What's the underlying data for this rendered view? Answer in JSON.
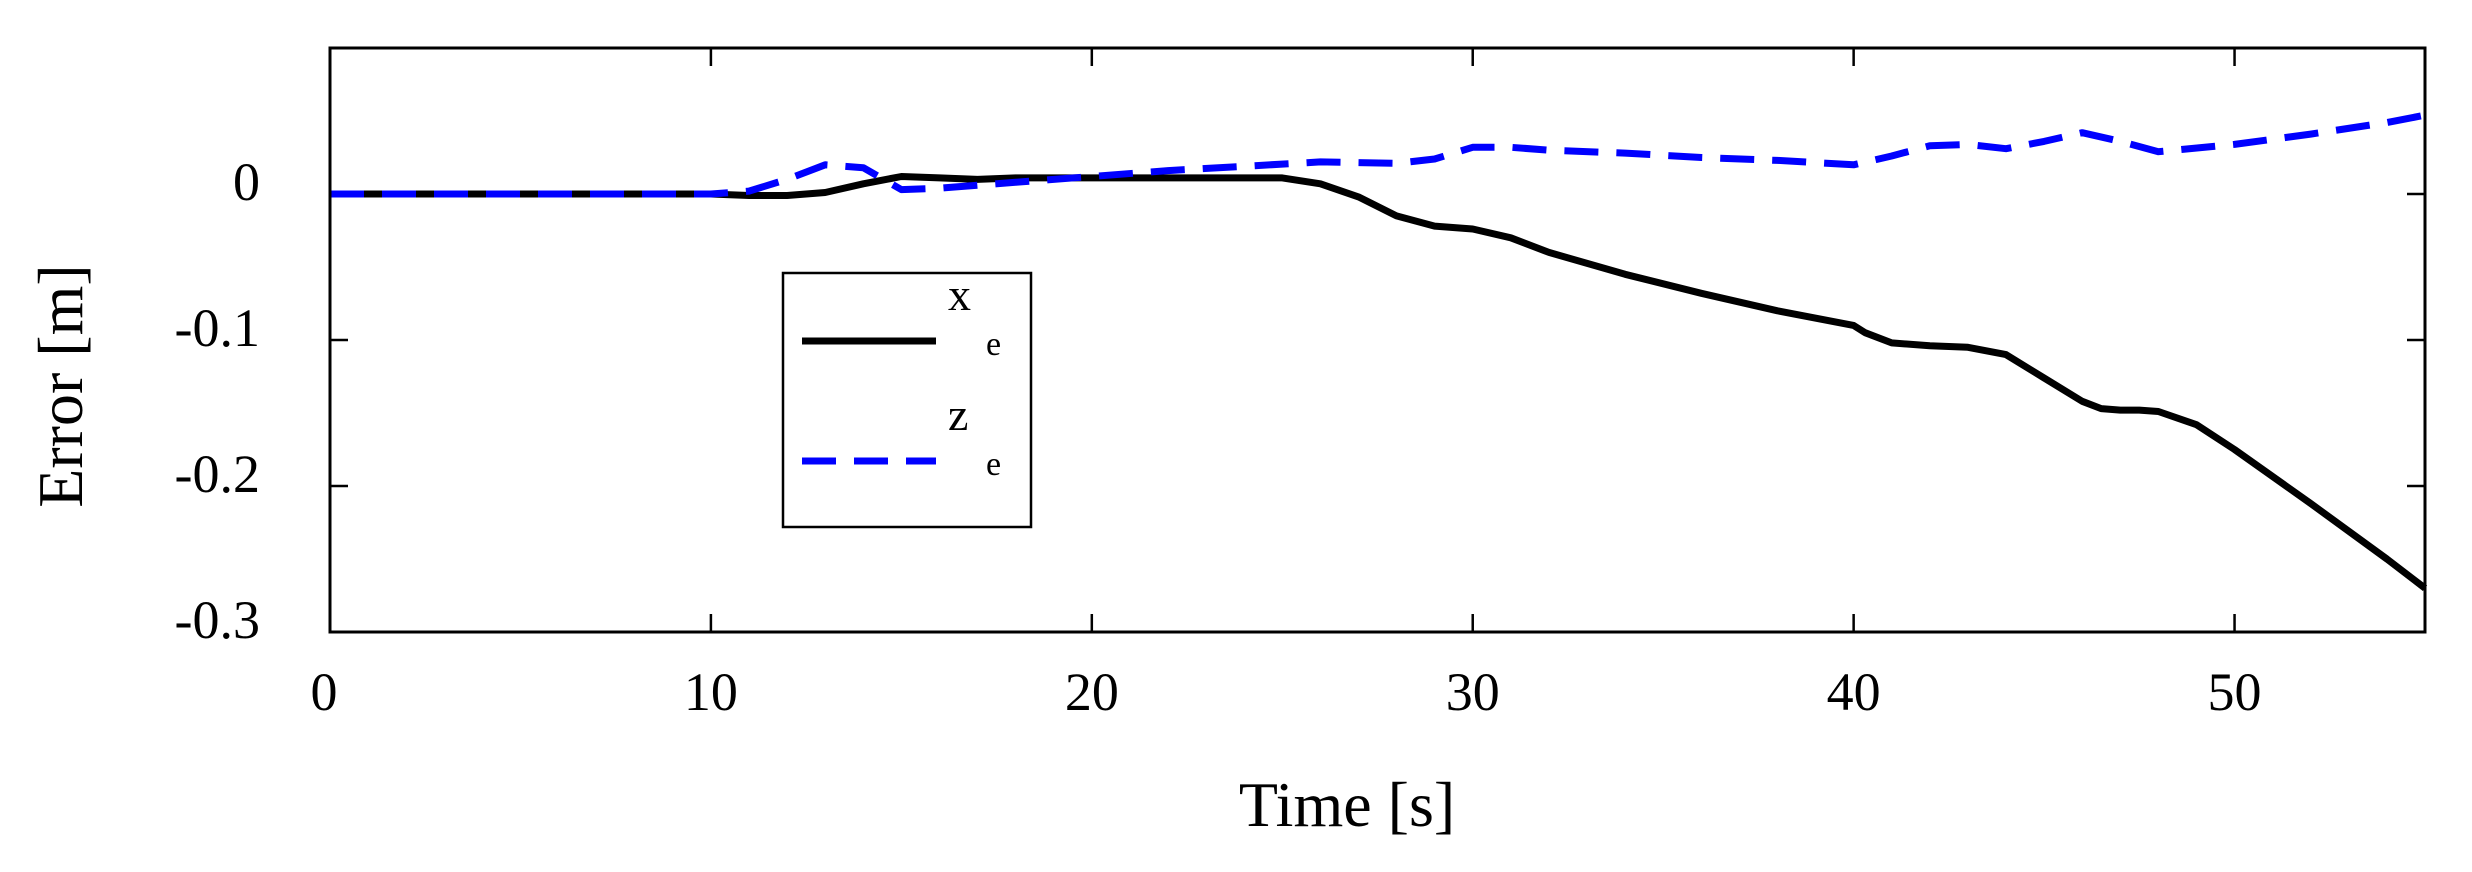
{
  "chart_data": {
    "type": "line",
    "xlabel": "Time [s]",
    "ylabel": "Error [m]",
    "xlim": [
      0,
      55
    ],
    "ylim": [
      -0.3,
      0.1
    ],
    "xticks": [
      0,
      10,
      20,
      30,
      40,
      50
    ],
    "xtick_labels": [
      "0",
      "10",
      "20",
      "30",
      "40",
      "50"
    ],
    "yticks": [
      0,
      -0.1,
      -0.2,
      -0.3
    ],
    "ytick_labels": [
      "0",
      "-0.1",
      "-0.2",
      "-0.3"
    ],
    "grid": false,
    "legend_position": "center-left",
    "series": [
      {
        "name": "x_e",
        "legend_main": "x",
        "legend_sub": "e",
        "color": "#000000",
        "style": "solid",
        "x": [
          0,
          10,
          11,
          12,
          13,
          14,
          15,
          16,
          17,
          18,
          20,
          22,
          24,
          25,
          26,
          27,
          28,
          29,
          30,
          31,
          32,
          34,
          36,
          38,
          40,
          40.3,
          41,
          42,
          43,
          44,
          45,
          46,
          46.5,
          47,
          47.5,
          48,
          49,
          50,
          52,
          54,
          55
        ],
        "y": [
          0,
          0,
          -0.001,
          -0.001,
          0.001,
          0.007,
          0.012,
          0.011,
          0.01,
          0.011,
          0.011,
          0.011,
          0.011,
          0.011,
          0.007,
          -0.002,
          -0.015,
          -0.022,
          -0.024,
          -0.03,
          -0.04,
          -0.055,
          -0.068,
          -0.08,
          -0.09,
          -0.095,
          -0.102,
          -0.104,
          -0.105,
          -0.11,
          -0.126,
          -0.142,
          -0.147,
          -0.148,
          -0.148,
          -0.149,
          -0.158,
          -0.175,
          -0.212,
          -0.25,
          -0.27
        ]
      },
      {
        "name": "z_e",
        "legend_main": "z",
        "legend_sub": "e",
        "color": "#0000ff",
        "style": "dashed",
        "x": [
          0,
          10,
          11,
          12,
          13,
          14,
          15,
          16,
          18,
          20,
          22,
          24,
          26,
          28,
          29,
          30,
          31,
          32,
          34,
          36,
          38,
          40,
          41,
          42,
          43,
          44,
          45,
          46,
          47,
          48,
          50,
          52,
          54,
          55
        ],
        "y": [
          0,
          0,
          0.002,
          0.01,
          0.02,
          0.018,
          0.003,
          0.004,
          0.008,
          0.012,
          0.016,
          0.019,
          0.022,
          0.021,
          0.024,
          0.032,
          0.032,
          0.03,
          0.028,
          0.025,
          0.023,
          0.02,
          0.026,
          0.033,
          0.034,
          0.031,
          0.036,
          0.042,
          0.036,
          0.029,
          0.034,
          0.041,
          0.049,
          0.054
        ]
      }
    ]
  }
}
